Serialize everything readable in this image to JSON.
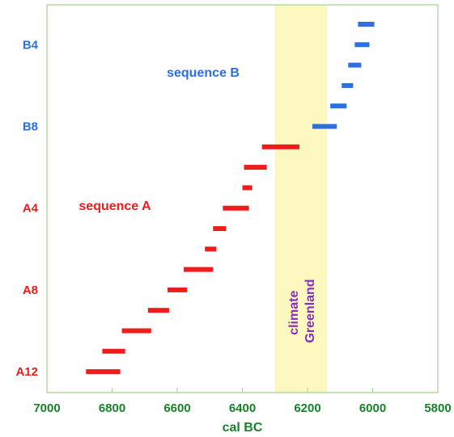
{
  "chart_data": {
    "type": "interval",
    "xlabel": "cal BC",
    "x_reversed": true,
    "xlim": [
      7000,
      5800
    ],
    "x_ticks": [
      "7000",
      "6800",
      "6600",
      "6400",
      "6200",
      "6000",
      "5800"
    ],
    "y_category_labels": [
      {
        "text": "B4",
        "series": "B",
        "row": 1
      },
      {
        "text": "B8",
        "series": "B",
        "row": 5
      },
      {
        "text": "A4",
        "series": "A",
        "row": 9
      },
      {
        "text": "A8",
        "series": "A",
        "row": 13
      },
      {
        "text": "A12",
        "series": "A",
        "row": 17
      }
    ],
    "series": [
      {
        "name": "sequence B",
        "color": "#2b6fe0",
        "intervals": [
          {
            "row": 0,
            "from": 6045,
            "to": 5995
          },
          {
            "row": 1,
            "from": 6055,
            "to": 6010
          },
          {
            "row": 2,
            "from": 6075,
            "to": 6035
          },
          {
            "row": 3,
            "from": 6095,
            "to": 6060
          },
          {
            "row": 4,
            "from": 6130,
            "to": 6080
          },
          {
            "row": 5,
            "from": 6185,
            "to": 6110
          }
        ]
      },
      {
        "name": "sequence A",
        "color": "#ee1c1c",
        "intervals": [
          {
            "row": 6,
            "from": 6340,
            "to": 6225
          },
          {
            "row": 7,
            "from": 6395,
            "to": 6325
          },
          {
            "row": 8,
            "from": 6400,
            "to": 6370
          },
          {
            "row": 9,
            "from": 6460,
            "to": 6380
          },
          {
            "row": 10,
            "from": 6490,
            "to": 6450
          },
          {
            "row": 11,
            "from": 6515,
            "to": 6480
          },
          {
            "row": 12,
            "from": 6580,
            "to": 6490
          },
          {
            "row": 13,
            "from": 6630,
            "to": 6570
          },
          {
            "row": 14,
            "from": 6690,
            "to": 6625
          },
          {
            "row": 15,
            "from": 6770,
            "to": 6680
          },
          {
            "row": 16,
            "from": 6830,
            "to": 6760
          },
          {
            "row": 17,
            "from": 6880,
            "to": 6775
          }
        ]
      }
    ],
    "band": {
      "from": 6300,
      "to": 6140,
      "label_lines": [
        "climate",
        "Greenland"
      ],
      "fill": "#fdf7c0",
      "text_color": "#8a2bbf"
    },
    "frame_color": "#9fd28f",
    "axis_text_color": "#17822a",
    "grid": false
  }
}
